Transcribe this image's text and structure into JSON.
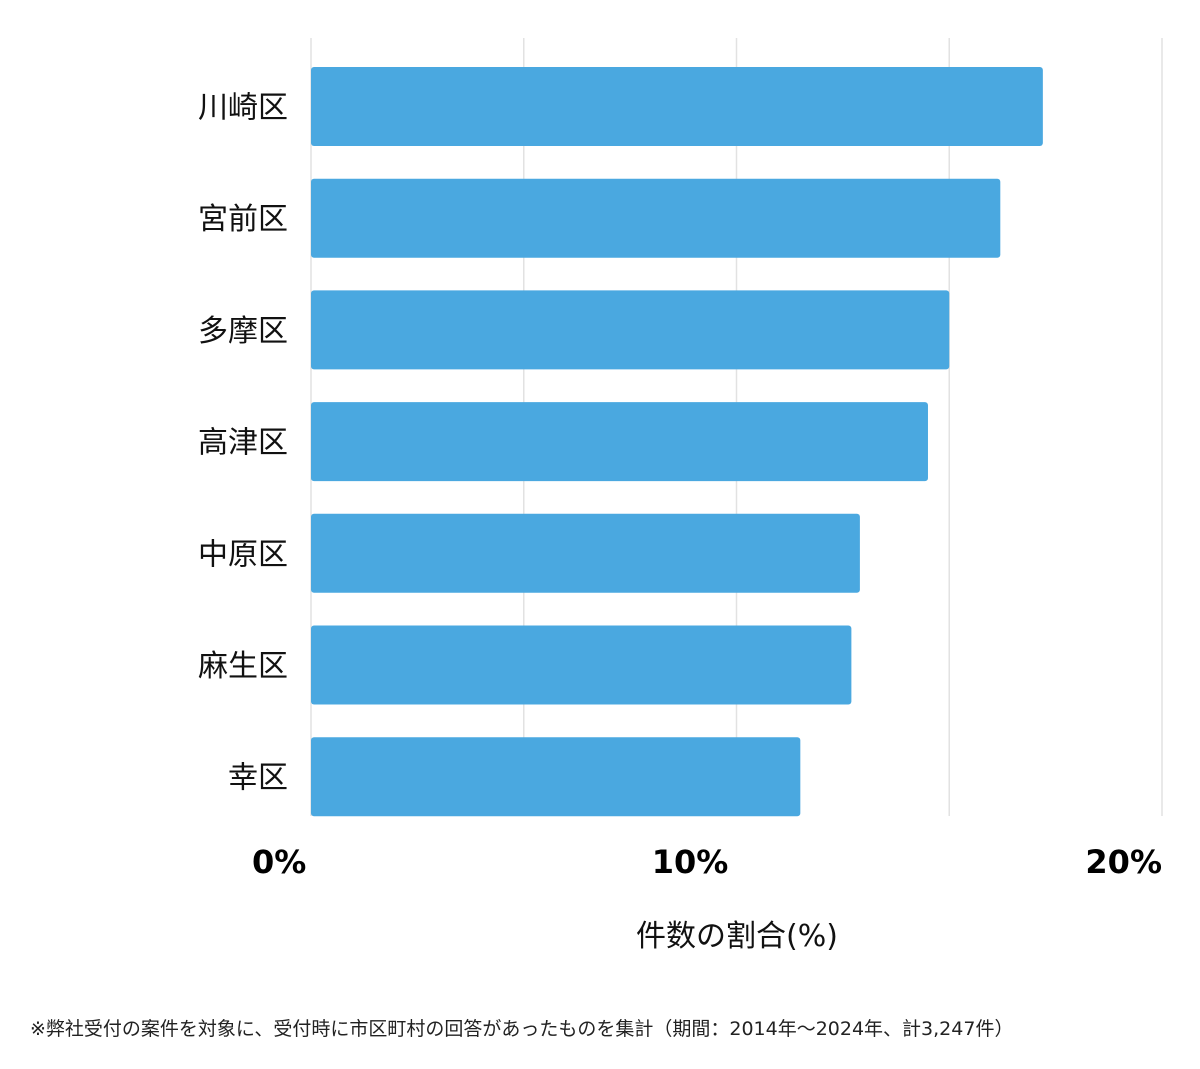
{
  "chart_data": {
    "type": "bar",
    "orientation": "horizontal",
    "categories": [
      "川崎区",
      "宮前区",
      "多摩区",
      "高津区",
      "中原区",
      "麻生区",
      "幸区"
    ],
    "values": [
      17.2,
      16.2,
      15.0,
      14.5,
      12.9,
      12.7,
      11.5
    ],
    "xlabel": "件数の割合(%)",
    "xlim": [
      0,
      20
    ],
    "xticks": [
      0,
      10,
      20
    ],
    "xtick_labels": [
      "0%",
      "10%",
      "20%"
    ],
    "grid": true,
    "bar_color": "#4aa8e0",
    "grid_color": "#e2e2e2"
  },
  "footnote": "※弊社受付の案件を対象に、受付時に市区町村の回答があったものを集計（期間：2014年～2024年、計3,247件）"
}
